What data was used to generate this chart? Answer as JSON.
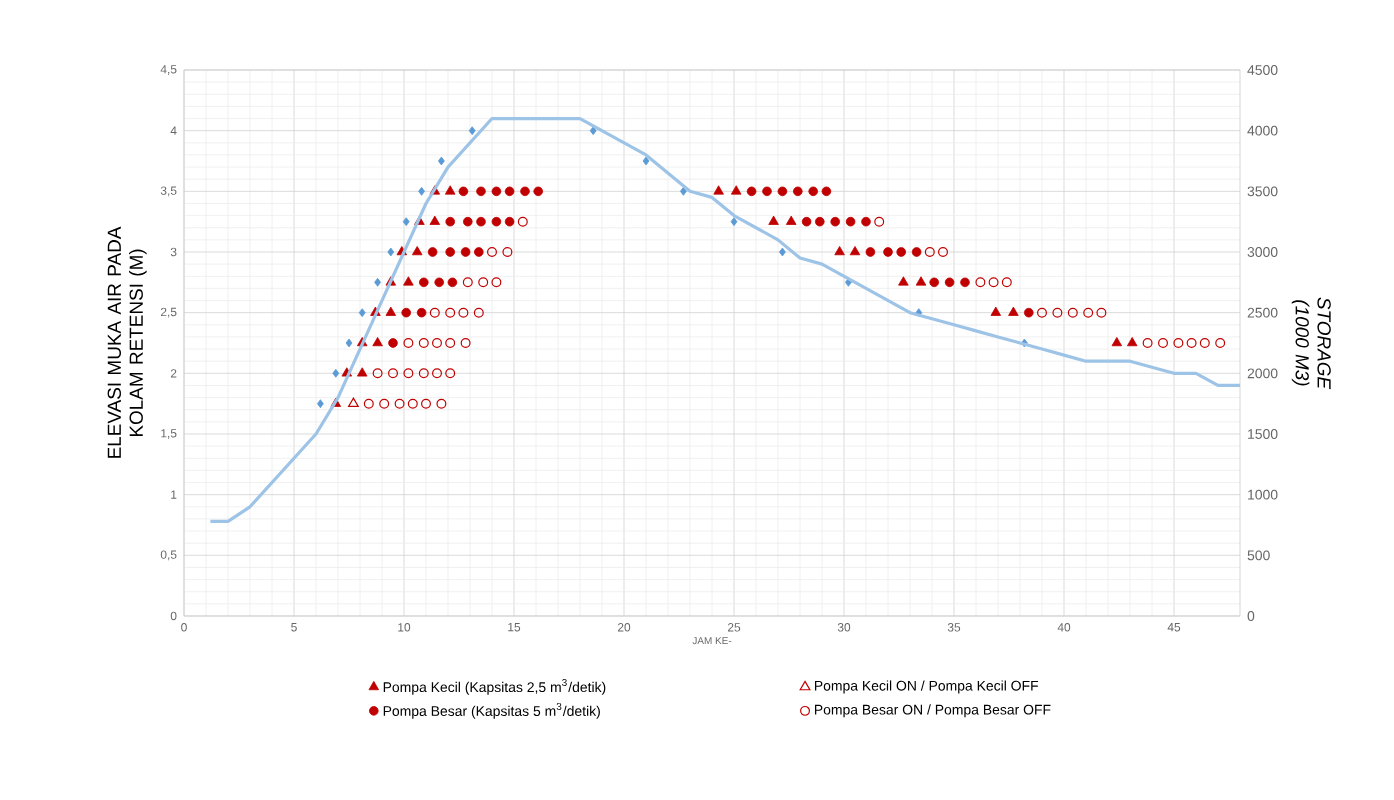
{
  "chart_data": {
    "type": "scatter",
    "xlabel": "JAM KE-",
    "ylabel": "ELEVASI MUKA AIR PADA  KOLAM RETENSI (M)",
    "y2label": "STORAGE (1000 M3)",
    "xlim": [
      0,
      48
    ],
    "xticks": [
      0,
      5,
      10,
      15,
      20,
      25,
      30,
      35,
      40,
      45
    ],
    "ylim": [
      0,
      4.5
    ],
    "yticks": [
      0,
      {
        "value": 0.5,
        "label": "0,5"
      },
      1,
      {
        "value": 1.5,
        "label": "1,5"
      },
      2,
      {
        "value": 2.5,
        "label": "2,5"
      },
      3,
      {
        "value": 3.5,
        "label": "3,5"
      },
      4,
      {
        "value": 4.5,
        "label": "4,5"
      }
    ],
    "y2lim": [
      0,
      4500
    ],
    "y2ticks": [
      0,
      500,
      1000,
      1500,
      2000,
      2500,
      3000,
      3500,
      4000,
      4500
    ],
    "grid": true,
    "legend": "bottom",
    "series": [
      {
        "type": "line",
        "axis": "y2",
        "color": "#9dc3e6",
        "marker": "none",
        "x": [
          1.2,
          2.0,
          3,
          4,
          5,
          6,
          7,
          8,
          9,
          10,
          11,
          12,
          13,
          14,
          15,
          16,
          17,
          18,
          19,
          20,
          21,
          22,
          23,
          24,
          25,
          26,
          27,
          28,
          29,
          30,
          31,
          32,
          33,
          34,
          35,
          36,
          37,
          38,
          39,
          40,
          41,
          42,
          43,
          44,
          45,
          46,
          47,
          48
        ],
        "values": [
          780,
          780,
          900,
          1100,
          1300,
          1500,
          1800,
          2200,
          2600,
          3000,
          3400,
          3700,
          3900,
          4100,
          4100,
          4100,
          4100,
          4100,
          4000,
          3900,
          3800,
          3650,
          3500,
          3450,
          3300,
          3200,
          3100,
          2950,
          2900,
          2800,
          2700,
          2600,
          2500,
          2450,
          2400,
          2350,
          2300,
          2250,
          2200,
          2150,
          2100,
          2100,
          2100,
          2050,
          2000,
          2000,
          1900,
          1900
        ]
      },
      {
        "color": "#5b9bd5",
        "marker": "diamond",
        "x": [
          6.2,
          6.9,
          7.5,
          8.1,
          8.8,
          9.4,
          10.1,
          10.8,
          11.7,
          13.1,
          18.6,
          21.0,
          22.7,
          25.0,
          27.2,
          30.2,
          33.4,
          38.2
        ],
        "values": [
          1.75,
          2,
          2.25,
          2.5,
          2.75,
          3,
          3.25,
          3.5,
          3.75,
          4,
          4,
          3.75,
          3.5,
          3.25,
          3,
          2.75,
          2.5,
          2.25
        ]
      },
      {
        "name": "Pompa Kecil  (Kapsitas 2,5 m$^{3}$/detik)",
        "color": "#c00000",
        "marker": "triangle",
        "x": [
          6.9,
          7.4,
          8.1,
          8.1,
          8.8,
          8.7,
          9.4,
          9.4,
          10.2,
          9.9,
          10.6,
          10.7,
          11.4,
          11.4,
          12.1,
          24.3,
          25.1,
          26.8,
          27.6,
          29.8,
          30.5,
          32.7,
          33.5,
          36.9,
          37.7,
          42.4,
          43.1
        ],
        "values": [
          1.75,
          2,
          2,
          2.25,
          2.25,
          2.5,
          2.5,
          2.75,
          2.75,
          3,
          3,
          3.25,
          3.25,
          3.5,
          3.5,
          3.5,
          3.5,
          3.25,
          3.25,
          3,
          3,
          2.75,
          2.75,
          2.5,
          2.5,
          2.25,
          2.25
        ]
      },
      {
        "name": "Pompa Kecil ON / Pompa Kecil OFF",
        "color": "#c00000",
        "marker": "triangle-open",
        "x": [
          7.7
        ],
        "values": [
          1.75
        ]
      },
      {
        "name": "Pompa Besar (Kapsitas 5 m$^{3}$/detik)",
        "color": "#c00000",
        "marker": "circle",
        "x": [
          9.5,
          10.1,
          10.8,
          10.9,
          11.6,
          12.2,
          11.3,
          12.1,
          12.8,
          13.4,
          12.1,
          12.9,
          13.5,
          14.2,
          14.8,
          12.7,
          13.5,
          14.2,
          14.8,
          15.5,
          16.1,
          25.8,
          26.5,
          27.2,
          27.9,
          28.6,
          29.2,
          28.3,
          28.9,
          29.6,
          30.3,
          31.0,
          31.2,
          32.0,
          32.6,
          33.3,
          34.1,
          34.8,
          35.5,
          38.4
        ],
        "values": [
          2.25,
          2.5,
          2.5,
          2.75,
          2.75,
          2.75,
          3,
          3,
          3,
          3,
          3.25,
          3.25,
          3.25,
          3.25,
          3.25,
          3.5,
          3.5,
          3.5,
          3.5,
          3.5,
          3.5,
          3.5,
          3.5,
          3.5,
          3.5,
          3.5,
          3.5,
          3.25,
          3.25,
          3.25,
          3.25,
          3.25,
          3,
          3,
          3,
          3,
          2.75,
          2.75,
          2.75,
          2.5
        ]
      },
      {
        "name": "Pompa Besar ON / Pompa Besar OFF",
        "color": "#c00000",
        "marker": "circle-open",
        "x": [
          8.4,
          9.1,
          9.8,
          10.4,
          11.0,
          11.7,
          8.8,
          9.5,
          10.2,
          10.9,
          11.5,
          12.1,
          10.2,
          10.9,
          11.5,
          12.1,
          12.8,
          11.4,
          12.1,
          12.7,
          13.4,
          12.9,
          13.6,
          14.2,
          14.0,
          14.7,
          15.4,
          31.6,
          33.9,
          34.5,
          36.2,
          36.8,
          37.4,
          39.0,
          39.7,
          40.4,
          41.1,
          41.7,
          43.8,
          44.5,
          45.2,
          45.8,
          46.4,
          47.1
        ],
        "values": [
          1.75,
          1.75,
          1.75,
          1.75,
          1.75,
          1.75,
          2,
          2,
          2,
          2,
          2,
          2,
          2.25,
          2.25,
          2.25,
          2.25,
          2.25,
          2.5,
          2.5,
          2.5,
          2.5,
          2.75,
          2.75,
          2.75,
          3,
          3,
          3.25,
          3.25,
          3,
          3,
          2.75,
          2.75,
          2.75,
          2.5,
          2.5,
          2.5,
          2.5,
          2.5,
          2.25,
          2.25,
          2.25,
          2.25,
          2.25,
          2.25
        ]
      }
    ]
  }
}
